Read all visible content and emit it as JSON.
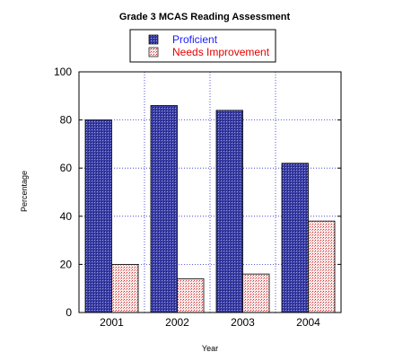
{
  "chart_data": {
    "type": "bar",
    "title": "Grade 3 MCAS Reading Assessment",
    "xlabel": "Year",
    "ylabel": "Percentage",
    "categories": [
      "2001",
      "2002",
      "2003",
      "2004"
    ],
    "series": [
      {
        "name": "Proficient",
        "values": [
          80,
          86,
          84,
          62
        ],
        "color": "#3b3fa6",
        "text_color": "#1a1aff"
      },
      {
        "name": "Needs Improvement",
        "values": [
          20,
          14,
          16,
          38
        ],
        "color": "#ffe0e0",
        "text_color": "#e60000"
      }
    ],
    "ylim": [
      0,
      100
    ],
    "yticks": [
      "0",
      "20",
      "40",
      "60",
      "80",
      "100"
    ],
    "grid": true,
    "legend_position": "top-center"
  }
}
